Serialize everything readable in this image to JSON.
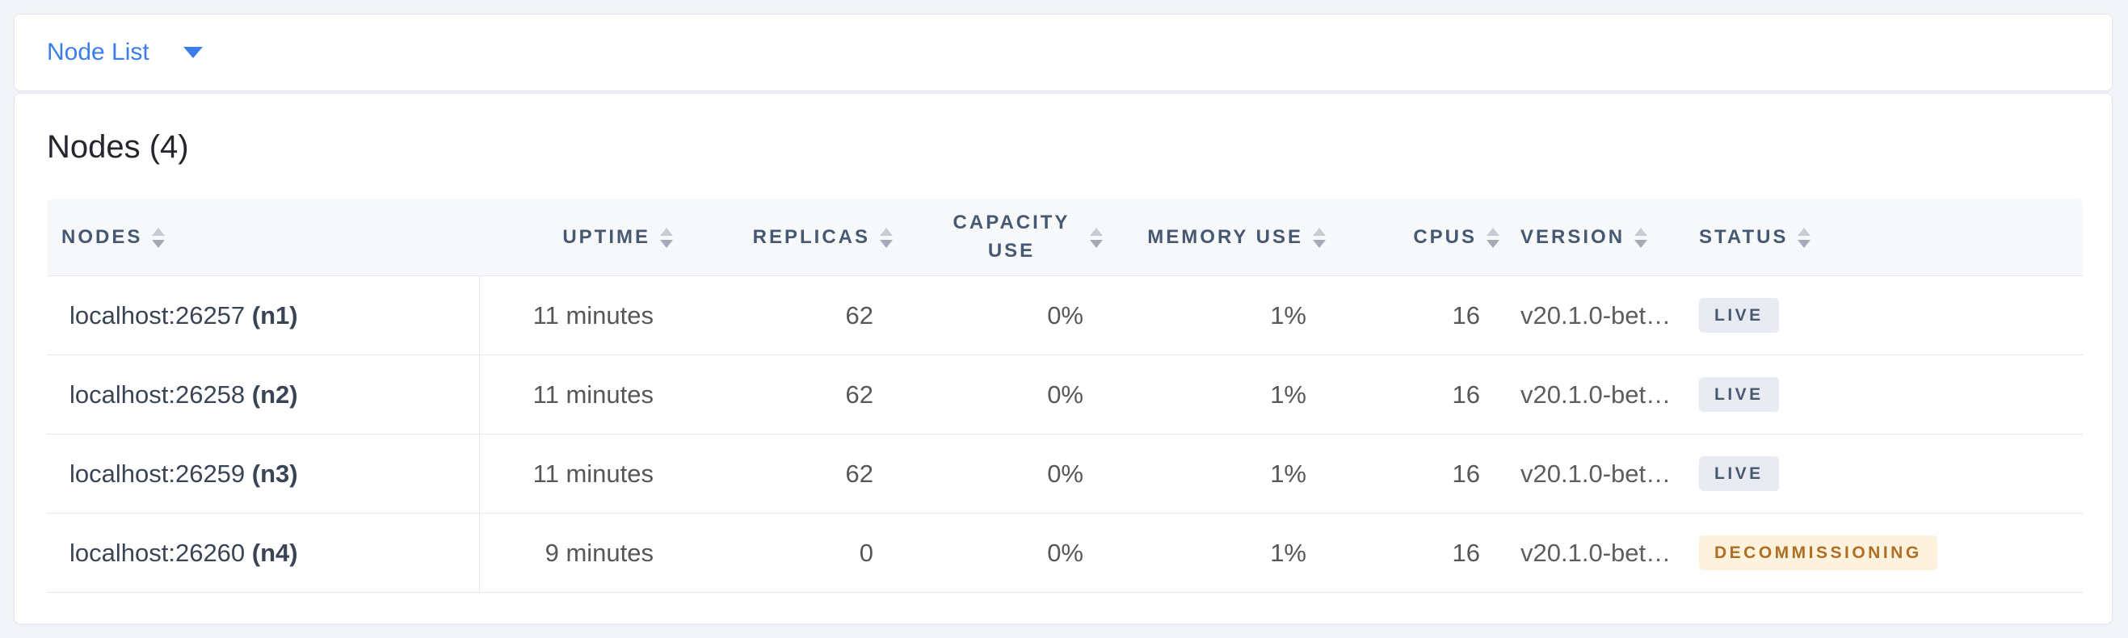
{
  "view_selector": {
    "label": "Node List",
    "caret_icon": "caret-down-icon",
    "accent_color": "#3b7de9"
  },
  "summary": {
    "title": "Nodes (4)"
  },
  "colors": {
    "page_background": "#f2f4f9",
    "card_background": "#ffffff",
    "header_text": "#475872",
    "body_text": "#56575a",
    "node_text": "#394455",
    "live_badge_bg": "#e8ebf2",
    "live_badge_text": "#475872",
    "decommissioning_badge_bg": "#fcf2de",
    "decommissioning_badge_text": "#b06e22"
  },
  "table": {
    "columns": [
      {
        "id": "nodes",
        "label": "NODES",
        "align": "left",
        "sort_icon": "sort-arrows-icon"
      },
      {
        "id": "uptime",
        "label": "UPTIME",
        "align": "right",
        "sort_icon": "sort-arrows-icon"
      },
      {
        "id": "replicas",
        "label": "REPLICAS",
        "align": "right",
        "sort_icon": "sort-arrows-icon"
      },
      {
        "id": "capacity_use",
        "label": "CAPACITY USE",
        "align": "right",
        "sort_icon": "sort-arrows-icon"
      },
      {
        "id": "memory_use",
        "label": "MEMORY USE",
        "align": "right",
        "sort_icon": "sort-arrows-icon"
      },
      {
        "id": "cpus",
        "label": "CPUS",
        "align": "right",
        "sort_icon": "sort-arrows-icon"
      },
      {
        "id": "version",
        "label": "VERSION",
        "align": "left",
        "sort_icon": "sort-arrows-icon"
      },
      {
        "id": "status",
        "label": "STATUS",
        "align": "left",
        "sort_icon": "sort-arrows-icon"
      }
    ],
    "rows": [
      {
        "address": "localhost:26257",
        "node_id": "(n1)",
        "uptime": "11 minutes",
        "replicas": "62",
        "capacity_use": "0%",
        "memory_use": "1%",
        "cpus": "16",
        "version": "v20.1.0-bet…",
        "status": "LIVE"
      },
      {
        "address": "localhost:26258",
        "node_id": "(n2)",
        "uptime": "11 minutes",
        "replicas": "62",
        "capacity_use": "0%",
        "memory_use": "1%",
        "cpus": "16",
        "version": "v20.1.0-bet…",
        "status": "LIVE"
      },
      {
        "address": "localhost:26259",
        "node_id": "(n3)",
        "uptime": "11 minutes",
        "replicas": "62",
        "capacity_use": "0%",
        "memory_use": "1%",
        "cpus": "16",
        "version": "v20.1.0-bet…",
        "status": "LIVE"
      },
      {
        "address": "localhost:26260",
        "node_id": "(n4)",
        "uptime": "9 minutes",
        "replicas": "0",
        "capacity_use": "0%",
        "memory_use": "1%",
        "cpus": "16",
        "version": "v20.1.0-bet…",
        "status": "DECOMMISSIONING"
      }
    ]
  }
}
